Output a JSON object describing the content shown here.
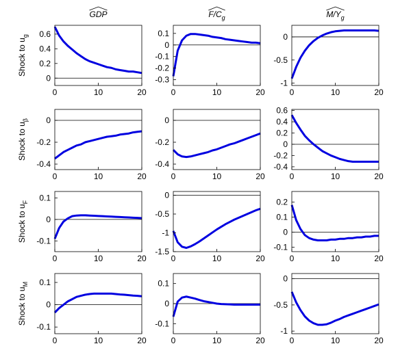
{
  "chart_data": [
    {
      "type": "line",
      "title": "GDP",
      "ylabel": "Shock to u",
      "ylabel_subscript": "g",
      "x": [
        0,
        1,
        2,
        3,
        4,
        5,
        6,
        7,
        8,
        9,
        10,
        11,
        12,
        13,
        14,
        15,
        16,
        17,
        18,
        19,
        20
      ],
      "xlim": [
        0,
        20
      ],
      "xticks": [
        0,
        10,
        20
      ],
      "ylim": [
        -0.1,
        0.72
      ],
      "yticks": [
        0,
        0.2,
        0.4,
        0.6
      ],
      "color": "#0000e0",
      "zero_line": true,
      "values": [
        0.7,
        0.58,
        0.5,
        0.44,
        0.39,
        0.34,
        0.3,
        0.26,
        0.23,
        0.21,
        0.19,
        0.17,
        0.15,
        0.14,
        0.12,
        0.11,
        0.1,
        0.09,
        0.09,
        0.08,
        0.07
      ]
    },
    {
      "type": "line",
      "title": "F/C",
      "title_subscript": "g",
      "x": [
        0,
        1,
        2,
        3,
        4,
        5,
        6,
        7,
        8,
        9,
        10,
        11,
        12,
        13,
        14,
        15,
        16,
        17,
        18,
        19,
        20
      ],
      "xlim": [
        0,
        20
      ],
      "xticks": [
        0,
        10,
        20
      ],
      "ylim": [
        -0.35,
        0.17
      ],
      "yticks": [
        -0.3,
        -0.2,
        -0.1,
        0,
        0.1
      ],
      "color": "#0000e0",
      "zero_line": true,
      "values": [
        -0.27,
        -0.05,
        0.04,
        0.08,
        0.095,
        0.095,
        0.09,
        0.085,
        0.08,
        0.07,
        0.065,
        0.06,
        0.05,
        0.045,
        0.04,
        0.035,
        0.03,
        0.025,
        0.02,
        0.02,
        0.015
      ]
    },
    {
      "type": "line",
      "title": "M/Y",
      "title_subscript": "g",
      "x": [
        0,
        1,
        2,
        3,
        4,
        5,
        6,
        7,
        8,
        9,
        10,
        11,
        12,
        13,
        14,
        15,
        16,
        17,
        18,
        19,
        20
      ],
      "xlim": [
        0,
        20
      ],
      "xticks": [
        0,
        10,
        20
      ],
      "ylim": [
        -1.05,
        0.25
      ],
      "yticks": [
        -1,
        -0.5,
        0
      ],
      "color": "#0000e0",
      "zero_line": true,
      "values": [
        -0.9,
        -0.65,
        -0.45,
        -0.3,
        -0.18,
        -0.09,
        -0.02,
        0.03,
        0.07,
        0.1,
        0.12,
        0.13,
        0.14,
        0.14,
        0.14,
        0.14,
        0.14,
        0.14,
        0.14,
        0.14,
        0.13
      ]
    },
    {
      "type": "line",
      "ylabel": "Shock to u",
      "ylabel_subscript": "β",
      "x": [
        0,
        1,
        2,
        3,
        4,
        5,
        6,
        7,
        8,
        9,
        10,
        11,
        12,
        13,
        14,
        15,
        16,
        17,
        18,
        19,
        20
      ],
      "xlim": [
        0,
        20
      ],
      "xticks": [
        0,
        10,
        20
      ],
      "ylim": [
        -0.45,
        0.1
      ],
      "yticks": [
        -0.4,
        -0.2,
        0
      ],
      "color": "#0000e0",
      "zero_line": true,
      "values": [
        -0.35,
        -0.32,
        -0.29,
        -0.27,
        -0.25,
        -0.23,
        -0.22,
        -0.2,
        -0.19,
        -0.18,
        -0.17,
        -0.16,
        -0.15,
        -0.145,
        -0.14,
        -0.13,
        -0.125,
        -0.12,
        -0.11,
        -0.105,
        -0.1
      ]
    },
    {
      "type": "line",
      "x": [
        0,
        1,
        2,
        3,
        4,
        5,
        6,
        7,
        8,
        9,
        10,
        11,
        12,
        13,
        14,
        15,
        16,
        17,
        18,
        19,
        20
      ],
      "xlim": [
        0,
        20
      ],
      "xticks": [
        0,
        10,
        20
      ],
      "ylim": [
        -0.45,
        0.1
      ],
      "yticks": [
        -0.4,
        -0.2,
        0
      ],
      "color": "#0000e0",
      "zero_line": true,
      "values": [
        -0.27,
        -0.31,
        -0.33,
        -0.335,
        -0.33,
        -0.32,
        -0.31,
        -0.3,
        -0.29,
        -0.275,
        -0.265,
        -0.25,
        -0.235,
        -0.22,
        -0.21,
        -0.195,
        -0.18,
        -0.165,
        -0.15,
        -0.135,
        -0.12
      ]
    },
    {
      "type": "line",
      "x": [
        0,
        1,
        2,
        3,
        4,
        5,
        6,
        7,
        8,
        9,
        10,
        11,
        12,
        13,
        14,
        15,
        16,
        17,
        18,
        19,
        20
      ],
      "xlim": [
        0,
        20
      ],
      "xticks": [
        0,
        10,
        20
      ],
      "ylim": [
        -0.45,
        0.62
      ],
      "yticks": [
        -0.4,
        -0.2,
        0,
        0.2,
        0.4,
        0.6
      ],
      "color": "#0000e0",
      "zero_line": true,
      "values": [
        0.52,
        0.38,
        0.26,
        0.15,
        0.07,
        0.0,
        -0.06,
        -0.12,
        -0.16,
        -0.2,
        -0.23,
        -0.26,
        -0.28,
        -0.3,
        -0.31,
        -0.31,
        -0.31,
        -0.31,
        -0.31,
        -0.31,
        -0.31
      ]
    },
    {
      "type": "line",
      "ylabel": "Shock to u",
      "ylabel_subscript": "F",
      "x": [
        0,
        1,
        2,
        3,
        4,
        5,
        6,
        7,
        8,
        9,
        10,
        11,
        12,
        13,
        14,
        15,
        16,
        17,
        18,
        19,
        20
      ],
      "xlim": [
        0,
        20
      ],
      "xticks": [
        0,
        10,
        20
      ],
      "ylim": [
        -0.15,
        0.13
      ],
      "yticks": [
        -0.1,
        0,
        0.1
      ],
      "color": "#0000e0",
      "zero_line": true,
      "values": [
        -0.09,
        -0.04,
        -0.01,
        0.005,
        0.015,
        0.018,
        0.019,
        0.019,
        0.018,
        0.017,
        0.016,
        0.015,
        0.014,
        0.013,
        0.012,
        0.011,
        0.01,
        0.009,
        0.008,
        0.007,
        0.006
      ]
    },
    {
      "type": "line",
      "x": [
        0,
        1,
        2,
        3,
        4,
        5,
        6,
        7,
        8,
        9,
        10,
        11,
        12,
        13,
        14,
        15,
        16,
        17,
        18,
        19,
        20
      ],
      "xlim": [
        0,
        20
      ],
      "xticks": [
        0,
        10,
        20
      ],
      "ylim": [
        -1.5,
        0.1
      ],
      "yticks": [
        -1.5,
        -1,
        -0.5,
        0
      ],
      "color": "#0000e0",
      "zero_line": true,
      "values": [
        -0.95,
        -1.25,
        -1.37,
        -1.4,
        -1.36,
        -1.3,
        -1.23,
        -1.15,
        -1.07,
        -0.99,
        -0.91,
        -0.84,
        -0.77,
        -0.71,
        -0.65,
        -0.6,
        -0.55,
        -0.5,
        -0.45,
        -0.4,
        -0.36
      ]
    },
    {
      "type": "line",
      "x": [
        0,
        1,
        2,
        3,
        4,
        5,
        6,
        7,
        8,
        9,
        10,
        11,
        12,
        13,
        14,
        15,
        16,
        17,
        18,
        19,
        20
      ],
      "xlim": [
        0,
        20
      ],
      "xticks": [
        0,
        10,
        20
      ],
      "ylim": [
        -0.13,
        0.27
      ],
      "yticks": [
        -0.1,
        0,
        0.1,
        0.2
      ],
      "color": "#0000e0",
      "zero_line": true,
      "values": [
        0.18,
        0.08,
        0.02,
        -0.02,
        -0.04,
        -0.05,
        -0.055,
        -0.055,
        -0.055,
        -0.05,
        -0.05,
        -0.045,
        -0.045,
        -0.04,
        -0.04,
        -0.035,
        -0.035,
        -0.03,
        -0.03,
        -0.025,
        -0.025
      ]
    },
    {
      "type": "line",
      "ylabel": "Shock to u",
      "ylabel_subscript": "M",
      "x": [
        0,
        1,
        2,
        3,
        4,
        5,
        6,
        7,
        8,
        9,
        10,
        11,
        12,
        13,
        14,
        15,
        16,
        17,
        18,
        19,
        20
      ],
      "xlim": [
        0,
        20
      ],
      "xticks": [
        0,
        10,
        20
      ],
      "ylim": [
        -0.13,
        0.14
      ],
      "yticks": [
        -0.1,
        0,
        0.1
      ],
      "color": "#0000e0",
      "zero_line": true,
      "values": [
        -0.035,
        -0.015,
        0.0,
        0.015,
        0.025,
        0.035,
        0.04,
        0.045,
        0.048,
        0.05,
        0.05,
        0.05,
        0.05,
        0.05,
        0.048,
        0.046,
        0.045,
        0.043,
        0.041,
        0.04,
        0.038
      ]
    },
    {
      "type": "line",
      "x": [
        0,
        1,
        2,
        3,
        4,
        5,
        6,
        7,
        8,
        9,
        10,
        11,
        12,
        13,
        14,
        15,
        16,
        17,
        18,
        19,
        20
      ],
      "xlim": [
        0,
        20
      ],
      "xticks": [
        0,
        10,
        20
      ],
      "ylim": [
        -0.15,
        0.15
      ],
      "yticks": [
        -0.1,
        0,
        0.1
      ],
      "color": "#0000e0",
      "zero_line": true,
      "values": [
        -0.065,
        0.01,
        0.03,
        0.035,
        0.03,
        0.025,
        0.018,
        0.012,
        0.008,
        0.004,
        0.0,
        -0.002,
        -0.003,
        -0.004,
        -0.005,
        -0.005,
        -0.005,
        -0.005,
        -0.005,
        -0.005,
        -0.005
      ]
    },
    {
      "type": "line",
      "x": [
        0,
        1,
        2,
        3,
        4,
        5,
        6,
        7,
        8,
        9,
        10,
        11,
        12,
        13,
        14,
        15,
        16,
        17,
        18,
        19,
        20
      ],
      "xlim": [
        0,
        20
      ],
      "xticks": [
        0,
        10,
        20
      ],
      "ylim": [
        -1.05,
        0.1
      ],
      "yticks": [
        -1,
        -0.5,
        0
      ],
      "color": "#0000e0",
      "zero_line": true,
      "values": [
        -0.25,
        -0.45,
        -0.6,
        -0.72,
        -0.8,
        -0.85,
        -0.88,
        -0.88,
        -0.87,
        -0.84,
        -0.8,
        -0.77,
        -0.73,
        -0.7,
        -0.67,
        -0.64,
        -0.61,
        -0.58,
        -0.55,
        -0.52,
        -0.49
      ]
    }
  ]
}
